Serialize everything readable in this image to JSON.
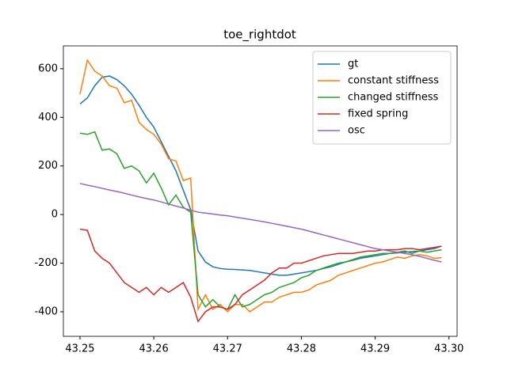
{
  "chart_data": {
    "type": "line",
    "title": "toe_rightdot",
    "x": [
      43.25,
      43.251,
      43.252,
      43.253,
      43.254,
      43.255,
      43.256,
      43.257,
      43.258,
      43.259,
      43.26,
      43.261,
      43.262,
      43.263,
      43.264,
      43.265,
      43.266,
      43.267,
      43.268,
      43.269,
      43.27,
      43.271,
      43.272,
      43.273,
      43.274,
      43.275,
      43.276,
      43.277,
      43.278,
      43.279,
      43.28,
      43.281,
      43.282,
      43.283,
      43.284,
      43.285,
      43.286,
      43.287,
      43.288,
      43.289,
      43.29,
      43.291,
      43.292,
      43.293,
      43.294,
      43.295,
      43.296,
      43.297,
      43.298,
      43.299
    ],
    "series": [
      {
        "name": "gt",
        "color": "#1f77b4",
        "values": [
          455,
          480,
          530,
          565,
          570,
          555,
          530,
          495,
          450,
          400,
          360,
          300,
          240,
          180,
          100,
          20,
          -150,
          -195,
          -215,
          -222,
          -225,
          -226,
          -228,
          -230,
          -235,
          -240,
          -245,
          -250,
          -250,
          -245,
          -240,
          -235,
          -230,
          -222,
          -215,
          -205,
          -195,
          -188,
          -180,
          -175,
          -170,
          -165,
          -160,
          -158,
          -155,
          -152,
          -150,
          -145,
          -140,
          -130
        ]
      },
      {
        "name": "constant stiffness",
        "color": "#ff7f0e",
        "values": [
          495,
          635,
          590,
          570,
          530,
          520,
          460,
          470,
          380,
          350,
          330,
          290,
          230,
          220,
          140,
          150,
          -390,
          -330,
          -390,
          -370,
          -400,
          -370,
          -370,
          -400,
          -380,
          -360,
          -360,
          -340,
          -330,
          -320,
          -320,
          -310,
          -290,
          -280,
          -270,
          -250,
          -240,
          -230,
          -220,
          -210,
          -200,
          -195,
          -185,
          -175,
          -180,
          -170,
          -165,
          -170,
          -180,
          -178
        ]
      },
      {
        "name": "changed stiffness",
        "color": "#2ca02c",
        "values": [
          335,
          330,
          340,
          265,
          270,
          250,
          190,
          200,
          180,
          130,
          170,
          110,
          40,
          80,
          30,
          10,
          -330,
          -380,
          -350,
          -380,
          -390,
          -330,
          -380,
          -370,
          -350,
          -330,
          -320,
          -300,
          -290,
          -280,
          -260,
          -250,
          -230,
          -220,
          -210,
          -200,
          -195,
          -185,
          -175,
          -170,
          -165,
          -160,
          -160,
          -155,
          -150,
          -160,
          -150,
          -155,
          -150,
          -145
        ]
      },
      {
        "name": "fixed spring",
        "color": "#d62728",
        "values": [
          -60,
          -65,
          -150,
          -180,
          -200,
          -240,
          -280,
          -300,
          -320,
          -300,
          -330,
          -300,
          -320,
          -300,
          -280,
          -340,
          -440,
          -400,
          -380,
          -380,
          -390,
          -370,
          -330,
          -310,
          -290,
          -270,
          -240,
          -220,
          -220,
          -200,
          -200,
          -190,
          -180,
          -170,
          -165,
          -160,
          -160,
          -160,
          -155,
          -150,
          -150,
          -145,
          -145,
          -145,
          -140,
          -140,
          -145,
          -140,
          -135,
          -130
        ]
      },
      {
        "name": "osc",
        "color": "#9467bd",
        "values": [
          128,
          121,
          115,
          108,
          101,
          95,
          88,
          80,
          73,
          66,
          60,
          52,
          43,
          35,
          27,
          18,
          10,
          6,
          2,
          -2,
          -5,
          -10,
          -15,
          -20,
          -25,
          -30,
          -36,
          -42,
          -48,
          -54,
          -60,
          -68,
          -76,
          -84,
          -92,
          -100,
          -108,
          -116,
          -124,
          -132,
          -140,
          -145,
          -150,
          -155,
          -160,
          -165,
          -172,
          -180,
          -188,
          -195
        ]
      }
    ],
    "xlim": [
      43.24775,
      43.3011
    ],
    "ylim": [
      -501,
      694
    ],
    "xticks": [
      43.25,
      43.26,
      43.27,
      43.28,
      43.29,
      {
        "value": 43.3,
        "label": "43.30"
      }
    ],
    "yticks": [
      -400,
      -200,
      0,
      200,
      400,
      600
    ],
    "legend": "upper right"
  }
}
